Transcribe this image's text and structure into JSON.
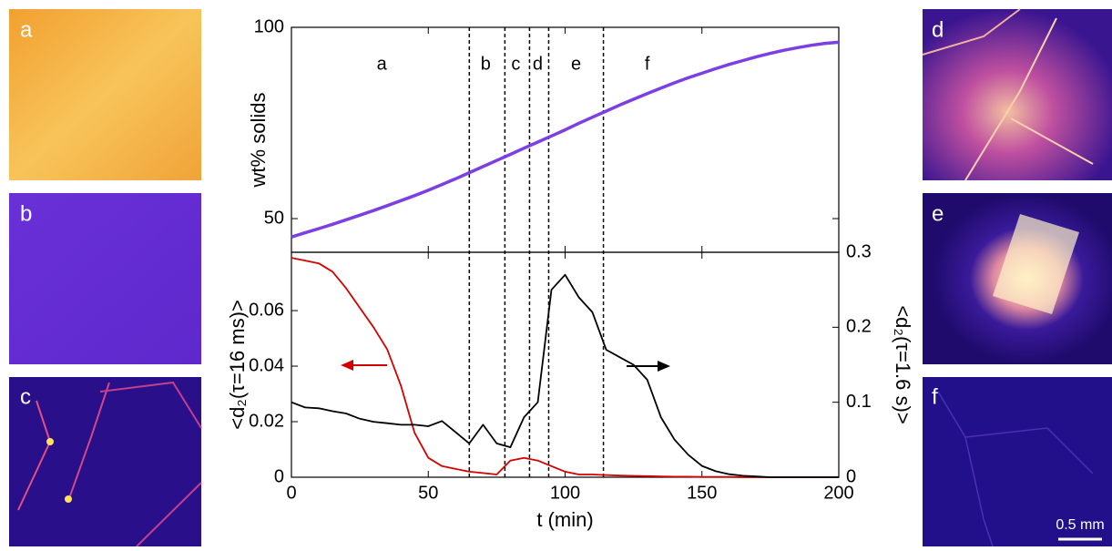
{
  "images": [
    {
      "label": "a"
    },
    {
      "label": "b"
    },
    {
      "label": "c"
    },
    {
      "label": "d"
    },
    {
      "label": "e"
    },
    {
      "label": "f"
    }
  ],
  "scale_bar": "0.5 mm",
  "chart_data": [
    {
      "type": "line",
      "ylabel": "wt% solids",
      "x": [
        0,
        5,
        10,
        15,
        20,
        25,
        30,
        35,
        40,
        45,
        50,
        55,
        60,
        65,
        70,
        75,
        80,
        85,
        90,
        95,
        100,
        105,
        110,
        115,
        120,
        125,
        130,
        135,
        140,
        145,
        150,
        155,
        160,
        165,
        170,
        175,
        180,
        185,
        190,
        195,
        200
      ],
      "series": [
        {
          "color": "#7b3fe4",
          "values": [
            45.2,
            46.3,
            47.4,
            48.5,
            49.7,
            50.9,
            52.1,
            53.4,
            54.7,
            56,
            57.4,
            58.9,
            60.4,
            62,
            63.6,
            65.2,
            66.8,
            68.4,
            70,
            71.6,
            73.2,
            74.9,
            76.5,
            78.1,
            79.7,
            81.2,
            82.7,
            84.1,
            85.5,
            86.8,
            88,
            89.2,
            90.3,
            91.3,
            92.3,
            93.2,
            94,
            94.7,
            95.3,
            95.8,
            96.1
          ]
        }
      ],
      "xlim": [
        0,
        200
      ],
      "xticks": [
        0,
        50,
        100,
        150,
        200
      ],
      "ylim": [
        41.2,
        100
      ],
      "yticks": [
        50,
        100
      ],
      "vlines": [
        65,
        78,
        87,
        94,
        114
      ],
      "annotations": [
        {
          "text": "a",
          "x": 33
        },
        {
          "text": "b",
          "x": 71
        },
        {
          "text": "c",
          "x": 82
        },
        {
          "text": "d",
          "x": 90
        },
        {
          "text": "e",
          "x": 104
        },
        {
          "text": "f",
          "x": 130
        }
      ]
    },
    {
      "type": "line",
      "xlabel": "t (min)",
      "ylabel": "<d₂(τ=16 ms)>",
      "y2label": "<d₂(τ=1.6 s)>",
      "x": [
        0,
        5,
        10,
        15,
        20,
        25,
        30,
        35,
        40,
        45,
        50,
        55,
        60,
        65,
        70,
        75,
        80,
        85,
        90,
        95,
        100,
        105,
        110,
        115,
        120,
        125,
        130,
        135,
        140,
        145,
        150,
        155,
        160,
        165,
        170,
        175,
        180,
        185,
        190,
        195,
        200
      ],
      "series": [
        {
          "color": "#d40000",
          "values": [
            0.079,
            0.078,
            0.077,
            0.074,
            0.068,
            0.061,
            0.054,
            0.046,
            0.033,
            0.016,
            0.007,
            0.004,
            0.003,
            0.002,
            0.0015,
            0.001,
            0.006,
            0.007,
            0.006,
            0.004,
            0.002,
            0.001,
            0.001,
            0.0008,
            0.0006,
            0.0005,
            0.0004,
            0.0003,
            0.0002,
            0.0002,
            0.0001,
            0.0001,
            0.0001,
            0,
            0,
            0,
            0,
            0,
            0,
            0,
            0
          ]
        },
        {
          "color": "#000000",
          "axis": "y2",
          "values": [
            0.1,
            0.093,
            0.092,
            0.088,
            0.085,
            0.078,
            0.074,
            0.072,
            0.07,
            0.07,
            0.068,
            0.075,
            0.06,
            0.045,
            0.07,
            0.045,
            0.04,
            0.08,
            0.1,
            0.25,
            0.27,
            0.24,
            0.22,
            0.17,
            0.16,
            0.15,
            0.13,
            0.08,
            0.05,
            0.03,
            0.015,
            0.008,
            0.004,
            0.002,
            0.001,
            0,
            0,
            0,
            0,
            0,
            0
          ]
        }
      ],
      "xlim": [
        0,
        200
      ],
      "xticks": [
        0,
        50,
        100,
        150,
        200
      ],
      "ylim": [
        0,
        0.081
      ],
      "yticks": [
        0,
        0.02,
        0.04,
        0.06
      ],
      "y2lim": [
        0,
        0.3
      ],
      "y2ticks": [
        0,
        0.1,
        0.2,
        0.3
      ]
    }
  ]
}
